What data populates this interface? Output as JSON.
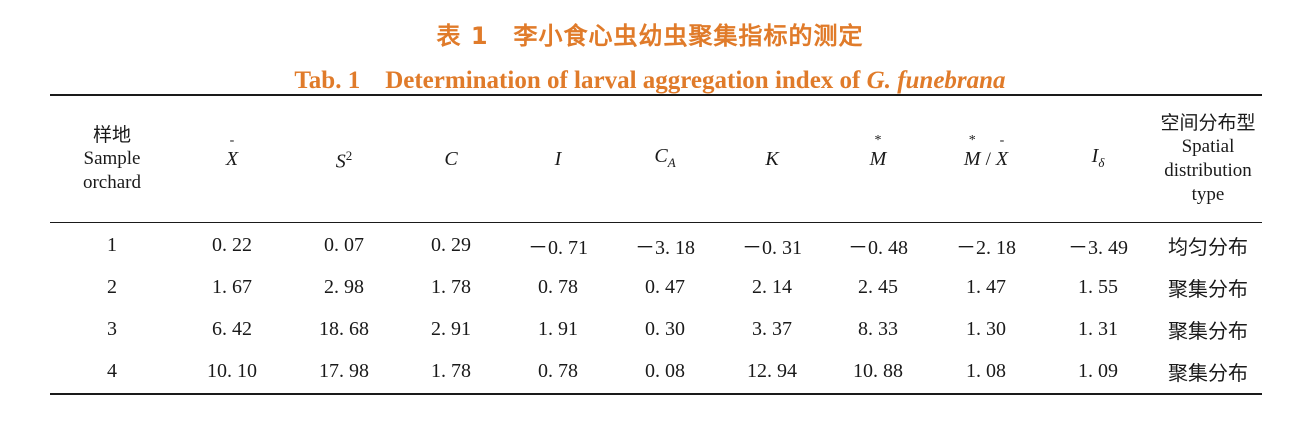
{
  "caption": {
    "zh": "表 1　李小食心虫幼虫聚集指标的测定",
    "en_prefix": "Tab. 1　Determination of larval aggregation index of ",
    "en_species": "G. funebrana"
  },
  "table": {
    "header": {
      "site_zh": "样地",
      "site_en_1": "Sample",
      "site_en_2": "orchard",
      "x": "X",
      "x_bar": "-",
      "s": "S",
      "s_exp": "2",
      "c": "C",
      "i": "I",
      "ca": "C",
      "ca_sub": "A",
      "k": "K",
      "m": "M",
      "m_star": "*",
      "mx_m": "M",
      "mx_star": "*",
      "mx_slash": "/",
      "mx_x": "X",
      "mx_bar": "-",
      "idelta": "I",
      "idelta_sub": "δ",
      "type_zh": "空间分布型",
      "type_en_1": "Spatial",
      "type_en_2": "distribution",
      "type_en_3": "type"
    },
    "rows": [
      {
        "site": "1",
        "x": "0. 22",
        "s2": "0. 07",
        "c": "0. 29",
        "i": "－0. 71",
        "ca": "－3. 18",
        "k": "－0. 31",
        "m": "－0. 48",
        "mx": "－2. 18",
        "idelta": "－3. 49",
        "type": "均匀分布"
      },
      {
        "site": "2",
        "x": "1. 67",
        "s2": "2. 98",
        "c": "1. 78",
        "i": "0. 78",
        "ca": "0. 47",
        "k": "2. 14",
        "m": "2. 45",
        "mx": "1. 47",
        "idelta": "1. 55",
        "type": "聚集分布"
      },
      {
        "site": "3",
        "x": "6. 42",
        "s2": "18. 68",
        "c": "2. 91",
        "i": "1. 91",
        "ca": "0. 30",
        "k": "3. 37",
        "m": "8. 33",
        "mx": "1. 30",
        "idelta": "1. 31",
        "type": "聚集分布"
      },
      {
        "site": "4",
        "x": "10. 10",
        "s2": "17. 98",
        "c": "1. 78",
        "i": "0. 78",
        "ca": "0. 08",
        "k": "12. 94",
        "m": "10. 88",
        "mx": "1. 08",
        "idelta": "1. 09",
        "type": "聚集分布"
      }
    ]
  },
  "colors": {
    "caption": "#e07b2a",
    "text": "#1a1a1a"
  }
}
